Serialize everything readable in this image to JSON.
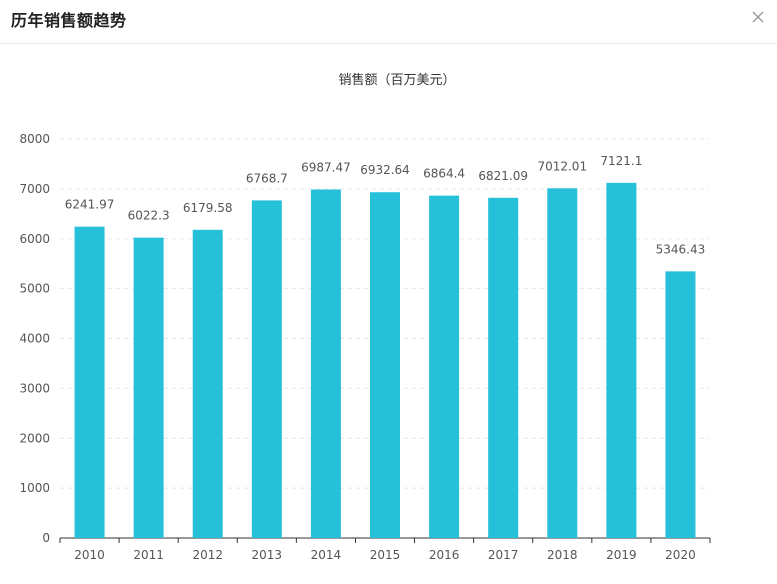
{
  "dialog": {
    "title": "历年销售额趋势",
    "close_icon": "close-icon"
  },
  "colors": {
    "bar": "#26c0d9",
    "axis": "#333333",
    "grid": "#e6e6e6",
    "label": "#555555"
  },
  "chart_data": {
    "type": "bar",
    "title": "",
    "legend": "销售额（百万美元）",
    "categories": [
      "2010",
      "2011",
      "2012",
      "2013",
      "2014",
      "2015",
      "2016",
      "2017",
      "2018",
      "2019",
      "2020"
    ],
    "series": [
      {
        "name": "销售额（百万美元）",
        "values": [
          6241.97,
          6022.3,
          6179.58,
          6768.7,
          6987.47,
          6932.64,
          6864.4,
          6821.09,
          7012.01,
          7121.1,
          5346.43
        ]
      }
    ],
    "value_labels": [
      "6241.97",
      "6022.3",
      "6179.58",
      "6768.7",
      "6987.47",
      "6932.64",
      "6864.4",
      "6821.09",
      "7012.01",
      "7121.1",
      "5346.43"
    ],
    "ylim": [
      0,
      8000
    ],
    "yticks": [
      0,
      1000,
      2000,
      3000,
      4000,
      5000,
      6000,
      7000,
      8000
    ],
    "xlabel": "",
    "ylabel": "",
    "grid": true
  }
}
